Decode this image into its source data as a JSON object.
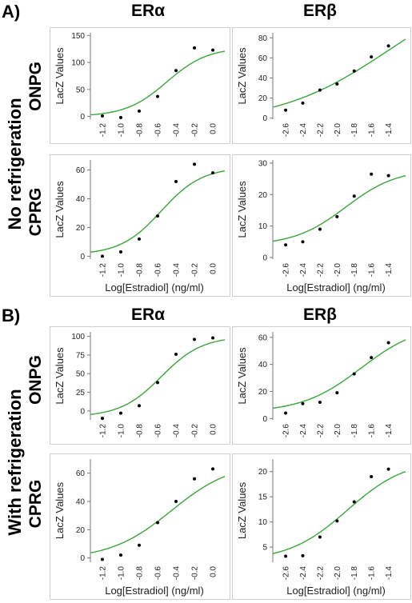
{
  "sections": [
    {
      "label": "A)",
      "condition": "No refrigeration"
    },
    {
      "label": "B)",
      "condition": "With refrigeration"
    }
  ],
  "columns": [
    "ERα",
    "ERβ"
  ],
  "assays": [
    "ONPG",
    "CPRG"
  ],
  "x_axis_label": "Log[Estradiol] (ng/ml)",
  "y_axis_label": "LacZ Values",
  "colors": {
    "curve": "#3aa63a",
    "points": "#000000",
    "frame": "#cfcfcf",
    "axis": "#777777"
  },
  "chart_data": [
    {
      "id": "A-ONPG-ERa",
      "type": "scatter",
      "fit": "sigmoid",
      "x": [
        -1.2,
        -1.0,
        -0.8,
        -0.6,
        -0.4,
        -0.2,
        0.0
      ],
      "y": [
        1,
        -2,
        10,
        37,
        85,
        127,
        123
      ],
      "xticks": [
        -1.2,
        -1.0,
        -0.8,
        -0.6,
        -0.4,
        -0.2,
        0.0
      ],
      "yticks": [
        0,
        50,
        100,
        150
      ],
      "xlim": [
        -1.33,
        0.13
      ],
      "ylim": [
        -5,
        155
      ],
      "curve": {
        "bottom": 0,
        "top": 128,
        "ec50": -0.5,
        "slope": 4.5
      },
      "ylabel": "LacZ Values",
      "xlabel": ""
    },
    {
      "id": "A-ONPG-ERb",
      "type": "scatter",
      "fit": "sigmoid",
      "x": [
        -2.6,
        -2.4,
        -2.2,
        -2.0,
        -1.8,
        -1.6,
        -1.4
      ],
      "y": [
        8,
        15,
        28,
        34,
        47,
        61,
        72
      ],
      "xticks": [
        -2.6,
        -2.4,
        -2.2,
        -2.0,
        -1.8,
        -1.6,
        -1.4
      ],
      "yticks": [
        0,
        20,
        40,
        60,
        80
      ],
      "xlim": [
        -2.75,
        -1.2
      ],
      "ylim": [
        -1,
        85
      ],
      "curve": {
        "bottom": -5,
        "top": 140,
        "ec50": -1.4,
        "slope": 1.55
      },
      "ylabel": "LacZ Values",
      "xlabel": ""
    },
    {
      "id": "A-CPRG-ERa",
      "type": "scatter",
      "fit": "sigmoid",
      "x": [
        -1.2,
        -1.0,
        -0.8,
        -0.6,
        -0.4,
        -0.2,
        0.0
      ],
      "y": [
        0,
        3,
        12,
        28,
        52,
        64,
        58
      ],
      "xticks": [
        -1.2,
        -1.0,
        -0.8,
        -0.6,
        -0.4,
        -0.2,
        0.0
      ],
      "yticks": [
        0,
        20,
        40,
        60
      ],
      "xlim": [
        -1.33,
        0.13
      ],
      "ylim": [
        -2,
        67
      ],
      "curve": {
        "bottom": 1,
        "top": 62,
        "ec50": -0.56,
        "slope": 4.5
      },
      "ylabel": "LacZ Values",
      "xlabel": "Log[Estradiol] (ng/ml)"
    },
    {
      "id": "A-CPRG-ERb",
      "type": "scatter",
      "fit": "sigmoid",
      "x": [
        -2.6,
        -2.4,
        -2.2,
        -2.0,
        -1.8,
        -1.6,
        -1.4
      ],
      "y": [
        4,
        5,
        9,
        13,
        19.5,
        26.5,
        26
      ],
      "xticks": [
        -2.6,
        -2.4,
        -2.2,
        -2.0,
        -1.8,
        -1.6,
        -1.4
      ],
      "yticks": [
        0,
        10,
        20,
        30
      ],
      "xlim": [
        -2.75,
        -1.2
      ],
      "ylim": [
        -0.5,
        31
      ],
      "curve": {
        "bottom": 3.8,
        "top": 28.2,
        "ec50": -1.9,
        "slope": 3.3
      },
      "ylabel": "LacZ Values",
      "xlabel": "Log[Estradiol] (ng/ml)"
    },
    {
      "id": "B-ONPG-ERa",
      "type": "scatter",
      "fit": "sigmoid",
      "x": [
        -1.2,
        -1.0,
        -0.8,
        -0.6,
        -0.4,
        -0.2,
        0.0
      ],
      "y": [
        -10,
        -3,
        7,
        38,
        76,
        96,
        98
      ],
      "xticks": [
        -1.2,
        -1.0,
        -0.8,
        -0.6,
        -0.4,
        -0.2,
        0.0
      ],
      "yticks": [
        0,
        25,
        50,
        75,
        100
      ],
      "xlim": [
        -1.33,
        0.13
      ],
      "ylim": [
        -12,
        106
      ],
      "curve": {
        "bottom": -8,
        "top": 100,
        "ec50": -0.56,
        "slope": 4.5
      },
      "ylabel": "LacZ Values",
      "xlabel": ""
    },
    {
      "id": "B-ONPG-ERb",
      "type": "scatter",
      "fit": "sigmoid",
      "x": [
        -2.6,
        -2.4,
        -2.2,
        -2.0,
        -1.8,
        -1.6,
        -1.4
      ],
      "y": [
        4,
        11,
        12,
        19,
        33,
        45,
        56
      ],
      "xticks": [
        -2.6,
        -2.4,
        -2.2,
        -2.0,
        -1.8,
        -1.6,
        -1.4
      ],
      "yticks": [
        0,
        20,
        40,
        60
      ],
      "xlim": [
        -2.75,
        -1.2
      ],
      "ylim": [
        -1,
        64
      ],
      "curve": {
        "bottom": 4.5,
        "top": 70,
        "ec50": -1.72,
        "slope": 2.9
      },
      "ylabel": "LacZ Values",
      "xlabel": ""
    },
    {
      "id": "B-CPRG-ERa",
      "type": "scatter",
      "fit": "sigmoid",
      "x": [
        -1.2,
        -1.0,
        -0.8,
        -0.6,
        -0.4,
        -0.2,
        0.0
      ],
      "y": [
        -1,
        2,
        9,
        25,
        40,
        56,
        63
      ],
      "xticks": [
        -1.2,
        -1.0,
        -0.8,
        -0.6,
        -0.4,
        -0.2,
        0.0
      ],
      "yticks": [
        0,
        20,
        40,
        60
      ],
      "xlim": [
        -1.33,
        0.13
      ],
      "ylim": [
        -3,
        70
      ],
      "curve": {
        "bottom": -1,
        "top": 68,
        "ec50": -0.45,
        "slope": 3.0
      },
      "ylabel": "LacZ Values",
      "xlabel": "Log[Estradiol] (ng/ml)"
    },
    {
      "id": "B-CPRG-ERb",
      "type": "scatter",
      "fit": "sigmoid",
      "x": [
        -2.6,
        -2.4,
        -2.2,
        -2.0,
        -1.8,
        -1.6,
        -1.4
      ],
      "y": [
        3.2,
        3.3,
        7,
        10.2,
        14,
        19,
        20.5
      ],
      "xticks": [
        -2.6,
        -2.4,
        -2.2,
        -2.0,
        -1.8,
        -1.6,
        -1.4
      ],
      "yticks": [
        5,
        10,
        15,
        20
      ],
      "xlim": [
        -2.75,
        -1.2
      ],
      "ylim": [
        2,
        22.5
      ],
      "curve": {
        "bottom": 2.2,
        "top": 22.5,
        "ec50": -1.88,
        "slope": 2.9
      },
      "ylabel": "LacZ Values",
      "xlabel": "Log[Estradiol] (ng/ml)"
    }
  ]
}
